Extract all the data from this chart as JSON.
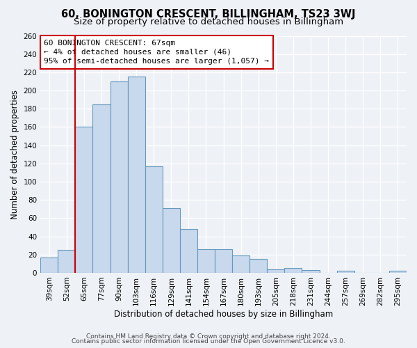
{
  "title": "60, BONINGTON CRESCENT, BILLINGHAM, TS23 3WJ",
  "subtitle": "Size of property relative to detached houses in Billingham",
  "xlabel": "Distribution of detached houses by size in Billingham",
  "ylabel": "Number of detached properties",
  "categories": [
    "39sqm",
    "52sqm",
    "65sqm",
    "77sqm",
    "90sqm",
    "103sqm",
    "116sqm",
    "129sqm",
    "141sqm",
    "154sqm",
    "167sqm",
    "180sqm",
    "193sqm",
    "205sqm",
    "218sqm",
    "231sqm",
    "244sqm",
    "257sqm",
    "269sqm",
    "282sqm",
    "295sqm"
  ],
  "values": [
    17,
    25,
    160,
    185,
    210,
    215,
    117,
    71,
    48,
    26,
    26,
    19,
    15,
    4,
    5,
    3,
    0,
    2,
    0,
    0,
    2
  ],
  "bar_color": "#c8d8ed",
  "bar_edge_color": "#6699bb",
  "bar_edge_width": 0.8,
  "red_line_index": 2,
  "red_line_color": "#cc0000",
  "annotation_line1": "60 BONINGTON CRESCENT: 67sqm",
  "annotation_line2": "← 4% of detached houses are smaller (46)",
  "annotation_line3": "95% of semi-detached houses are larger (1,057) →",
  "annotation_box_color": "#ffffff",
  "annotation_box_edge_color": "#cc0000",
  "ylim": [
    0,
    260
  ],
  "yticks": [
    0,
    20,
    40,
    60,
    80,
    100,
    120,
    140,
    160,
    180,
    200,
    220,
    240,
    260
  ],
  "footer_line1": "Contains HM Land Registry data © Crown copyright and database right 2024.",
  "footer_line2": "Contains public sector information licensed under the Open Government Licence v3.0.",
  "bg_color": "#eef2f7",
  "grid_color": "#ffffff",
  "title_fontsize": 10.5,
  "subtitle_fontsize": 9.5,
  "xlabel_fontsize": 8.5,
  "ylabel_fontsize": 8.5,
  "tick_fontsize": 7.5,
  "annotation_fontsize": 8,
  "footer_fontsize": 6.5
}
